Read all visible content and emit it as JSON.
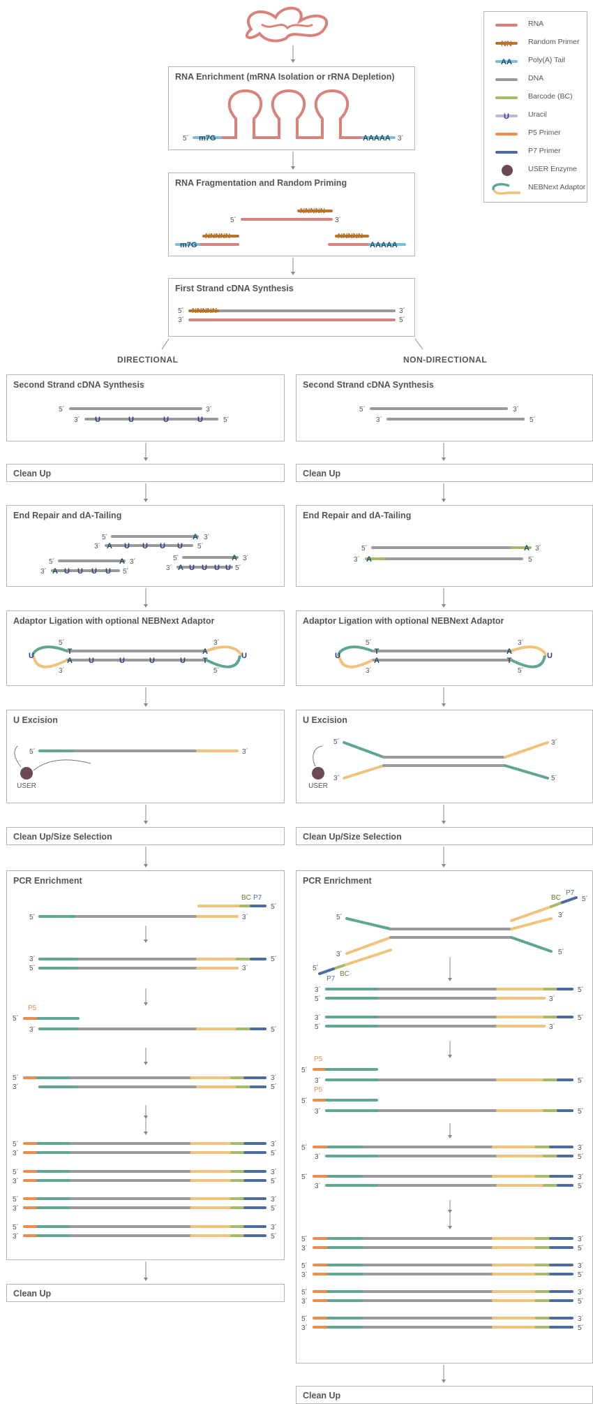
{
  "legend": [
    {
      "label": "RNA",
      "icon": "rna-strand-icon"
    },
    {
      "label": "Random Primer",
      "icon": "random-primer-icon",
      "glyph": "NN"
    },
    {
      "label": "Poly(A) Tail",
      "icon": "polya-tail-icon",
      "glyph": "AA"
    },
    {
      "label": "DNA",
      "icon": "dna-strand-icon"
    },
    {
      "label": "Barcode (BC)",
      "icon": "barcode-icon"
    },
    {
      "label": "Uracil",
      "icon": "uracil-icon",
      "glyph": "U"
    },
    {
      "label": "P5 Primer",
      "icon": "p5-primer-icon"
    },
    {
      "label": "P7 Primer",
      "icon": "p7-primer-icon"
    },
    {
      "label": "USER Enzyme",
      "icon": "user-enzyme-icon"
    },
    {
      "label": "NEBNext Adaptor",
      "icon": "nebnext-adaptor-icon"
    }
  ],
  "top_steps": {
    "enrichment": "RNA Enrichment (mRNA Isolation or rRNA Depletion)",
    "fragmentation": "RNA Fragmentation and Random Priming",
    "first_strand": "First Strand cDNA Synthesis"
  },
  "columns": {
    "left": "DIRECTIONAL",
    "right": "NON-DIRECTIONAL"
  },
  "directional": {
    "second_strand": "Second Strand cDNA Synthesis",
    "cleanup1": "Clean Up",
    "end_repair": "End Repair and dA-Tailing",
    "ligation": "Adaptor Ligation with optional NEBNext Adaptor",
    "u_excision": "U Excision",
    "cleanup_size": "Clean Up/Size Selection",
    "pcr": "PCR Enrichment",
    "cleanup_final": "Clean Up"
  },
  "non_directional": {
    "second_strand": "Second Strand cDNA Synthesis",
    "cleanup1": "Clean Up",
    "end_repair": "End Repair and dA-Tailing",
    "ligation": "Adaptor Ligation with optional NEBNext Adaptor",
    "u_excision": "U Excision",
    "cleanup_size": "Clean Up/Size Selection",
    "pcr": "PCR Enrichment",
    "cleanup_final": "Clean Up"
  },
  "labels": {
    "five": "5´",
    "three": "3´",
    "m7g": "m7G",
    "polya": "AAAAA",
    "nnnnn": "NNNNN",
    "u": "U",
    "a": "A",
    "t": "T",
    "user": "USER",
    "bc": "BC",
    "p7": "P7",
    "p5": "P5"
  },
  "colors": {
    "rna": "#d9827b",
    "dna": "#9a9a9a",
    "teal": "#5fa692",
    "yellow": "#f0c27a",
    "orange": "#f08a4b",
    "p7": "#4a6aa0",
    "barcode": "#a6b86a",
    "primer": "#b8742a",
    "polya": "#7bbfd6",
    "uracil": "#2f3d8a",
    "enzyme": "#6b4a55"
  }
}
